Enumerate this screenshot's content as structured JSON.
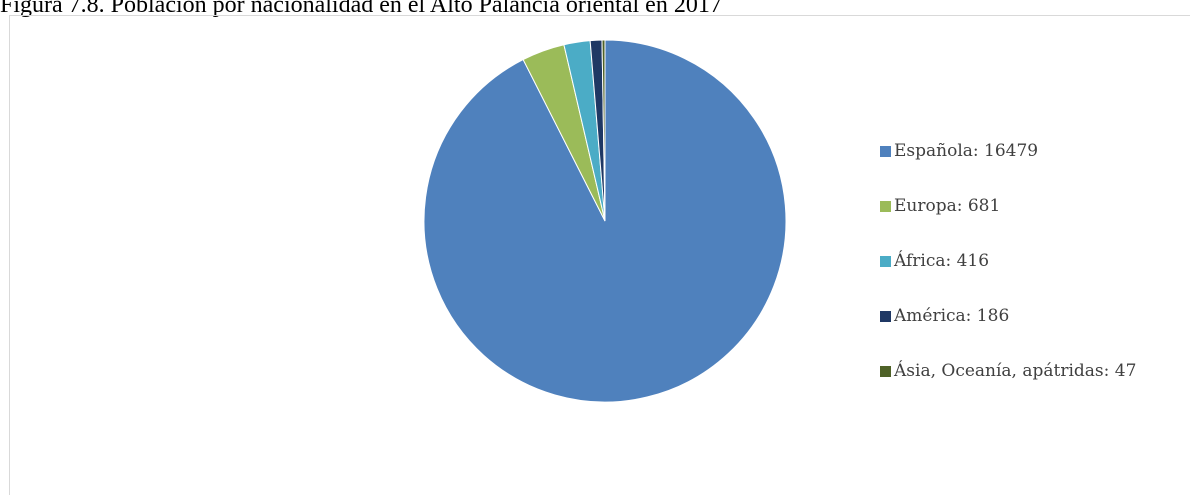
{
  "caption": "Figura 7.8. Población por nacionalidad en el Alto Palancia oriental en 2017",
  "chart_data": {
    "type": "pie",
    "categories": [
      "Española",
      "Europa",
      "África",
      "América",
      "Ásia, Oceanía, apátridas"
    ],
    "values": [
      16479,
      681,
      416,
      186,
      47
    ],
    "labels": [
      "Española: 16479",
      "Europa: 681",
      "África: 416",
      "América: 186",
      "Ásia, Oceanía, apátridas: 47"
    ],
    "colors": [
      "#4f81bd",
      "#9bbb59",
      "#4bacc6",
      "#1f3864",
      "#4f6228"
    ],
    "legend_position": "right",
    "start_angle_deg": 0,
    "direction": "clockwise"
  }
}
